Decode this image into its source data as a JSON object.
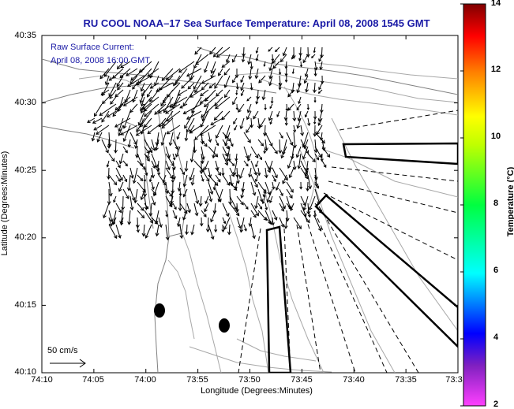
{
  "title": "RU COOL  NOAA–17  Sea Surface Temperature:  April 08, 2008 1545 GMT",
  "current_label": {
    "line1": "Raw Surface Current:",
    "line2": "April 08, 2008 16:00 GMT"
  },
  "scale": {
    "label": "50 cm/s"
  },
  "axes": {
    "xlabel": "Longitude (Degrees:Minutes)",
    "ylabel": "Latitude (Degrees:Minutes)",
    "x_ticks": [
      "74:10",
      "74:05",
      "74:00",
      "73:55",
      "73:50",
      "73:45",
      "73:40",
      "73:35",
      "73:3"
    ],
    "y_ticks": [
      "40:35",
      "40:30",
      "40:25",
      "40:20",
      "40:15",
      "40:10"
    ]
  },
  "colorbar": {
    "label": "Temperature (°C)",
    "ticks": [
      "14",
      "12",
      "10",
      "8",
      "6",
      "4",
      "2"
    ],
    "min": 2,
    "max": 14
  },
  "colors": {
    "title": "#1a1aa6",
    "coast": "#888888",
    "bathymetry": "#aaaaaa",
    "arrows": "#000000"
  }
}
